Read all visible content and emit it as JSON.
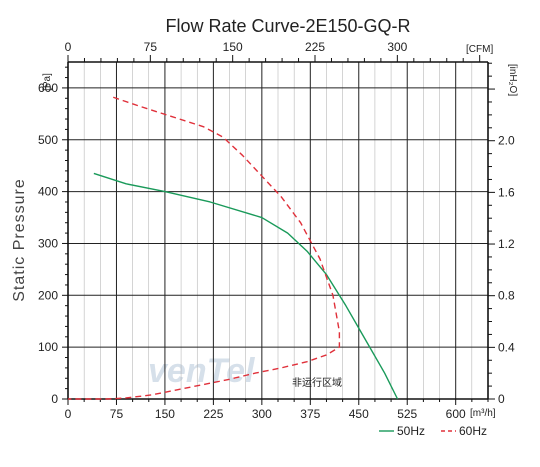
{
  "chart_data": {
    "type": "line",
    "title": "Flow Rate Curve-2E150-GQ-R",
    "ylabel": "Static Pressure",
    "y_unit": "[Pa]",
    "x_unit": "[m³/h]",
    "x2_unit": "[CFM]",
    "y2_unit": "[inH₂O]",
    "xlim": [
      0,
      650
    ],
    "ylim": [
      0,
      650
    ],
    "x_ticks": [
      0,
      75,
      150,
      225,
      300,
      375,
      450,
      525,
      600
    ],
    "y_ticks": [
      0,
      100,
      200,
      300,
      400,
      500,
      600
    ],
    "x2_ticks": [
      0,
      75,
      150,
      225,
      300
    ],
    "y2_ticks": [
      0,
      0.4,
      0.8,
      1.2,
      1.6,
      2.0
    ],
    "y2_tick_labels": [
      "0",
      "0.4",
      "0.8",
      "1.2",
      "1.6",
      "2.0"
    ],
    "grid": true,
    "series": [
      {
        "name": "50Hz",
        "color": "#1a9a5a",
        "style": "solid",
        "x": [
          40,
          90,
          150,
          220,
          300,
          340,
          370,
          400,
          430,
          460,
          490,
          510
        ],
        "y": [
          435,
          415,
          400,
          380,
          350,
          320,
          285,
          240,
          180,
          115,
          50,
          0
        ]
      },
      {
        "name": "60Hz",
        "color": "#e0303a",
        "style": "dashed",
        "x": [
          70,
          110,
          160,
          210,
          240,
          270,
          300,
          330,
          360,
          390,
          410,
          420,
          420,
          400,
          370,
          330,
          290,
          250,
          210,
          170,
          130,
          90,
          60,
          0
        ],
        "y": [
          582,
          565,
          545,
          525,
          505,
          470,
          430,
          390,
          340,
          270,
          200,
          130,
          100,
          85,
          72,
          60,
          50,
          38,
          28,
          18,
          8,
          2,
          0,
          0
        ]
      }
    ],
    "annotation": "非运行区域",
    "watermark": "venTel"
  }
}
